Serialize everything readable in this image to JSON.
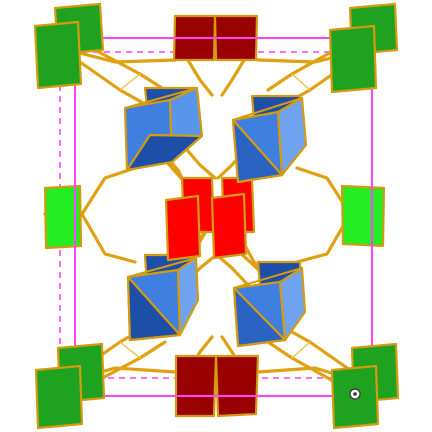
{
  "colors": {
    "background": "#ffffff",
    "unit_cell": "#FF44FF",
    "bond": "#E0A010",
    "green_dark": "#1FA21F",
    "green_light": "#22EE22",
    "dark_red": "#990000",
    "red": "#FF0000",
    "blue": "#3F7FE0",
    "blue_shade": "#1E4FA8",
    "blue_light": "#6FA3F0"
  },
  "icons": {
    "axis_indicator": "axis-indicator-icon"
  }
}
